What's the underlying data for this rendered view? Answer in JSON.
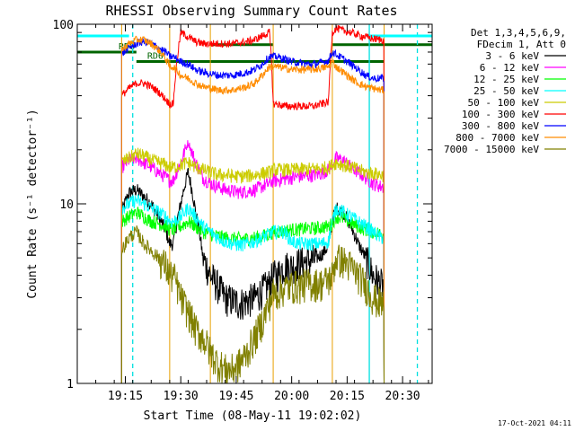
{
  "chart_data": {
    "type": "line",
    "title": "RHESSI Observing Summary Count Rates",
    "xlabel": "Start Time (08-May-11 19:02:02)",
    "ylabel": "Count Rate (s⁻¹ detector⁻¹)",
    "y_scale": "log",
    "ylim": [
      1,
      100
    ],
    "xlim": [
      "19:02",
      "20:38"
    ],
    "x_ticks": [
      "19:15",
      "19:30",
      "19:45",
      "20:00",
      "20:15",
      "20:30"
    ],
    "y_ticks": [
      "1",
      "10",
      "100"
    ],
    "legend_header": [
      "Det 1,3,4,5,6,9,",
      "FDecim 1, Att 0"
    ],
    "legend_position": "right",
    "timestamp": "17-Oct-2021 04:11",
    "gaps": [
      [
        "19:27",
        "19:38"
      ],
      [
        "19:55",
        "20:11"
      ]
    ],
    "data_window": [
      "19:14",
      "20:25"
    ],
    "night_start_markers": [
      "19:14",
      "19:38",
      "20:11"
    ],
    "night_end_markers": [
      "19:27",
      "19:55",
      "20:25"
    ],
    "saa_markers": [
      "19:17",
      "20:21",
      "20:34"
    ],
    "flag_bars": [
      {
        "label": "RD6",
        "x": [
          "19:02",
          "19:18"
        ],
        "y": 70
      },
      {
        "label": "RD6",
        "x": [
          "19:18",
          "20:25"
        ],
        "y": 62
      }
    ],
    "series": [
      {
        "name": "3 - 6 keV",
        "color": "#000000",
        "x": [
          "19:14",
          "19:16",
          "19:18",
          "19:20",
          "19:22",
          "19:24",
          "19:26",
          "19:27",
          "19:28",
          "19:30",
          "19:32",
          "19:34",
          "19:36",
          "19:38",
          "19:40",
          "19:42",
          "19:44",
          "19:46",
          "19:48",
          "19:50",
          "19:52",
          "19:54",
          "19:55",
          "19:56",
          "19:58",
          "20:00",
          "20:02",
          "20:04",
          "20:06",
          "20:08",
          "20:10",
          "20:11",
          "20:12",
          "20:14",
          "20:16",
          "20:18",
          "20:20",
          "20:22",
          "20:24",
          "20:25"
        ],
        "y": [
          9.0,
          11.5,
          12.0,
          11.0,
          10.0,
          8.5,
          7.0,
          6.0,
          6.0,
          10.0,
          15.0,
          9.0,
          5.0,
          4.0,
          3.5,
          3.0,
          2.9,
          2.8,
          2.9,
          3.0,
          3.3,
          3.6,
          4.0,
          4.0,
          4.5,
          4.5,
          4.7,
          4.8,
          4.9,
          5.2,
          5.8,
          8.0,
          9.5,
          9.0,
          7.5,
          6.0,
          5.0,
          4.0,
          3.6,
          3.5
        ]
      },
      {
        "name": "6 - 12 keV",
        "color": "#ff00ff",
        "x": [
          "19:14",
          "19:16",
          "19:18",
          "19:20",
          "19:22",
          "19:24",
          "19:26",
          "19:27",
          "19:28",
          "19:30",
          "19:32",
          "19:34",
          "19:36",
          "19:38",
          "19:40",
          "19:42",
          "19:44",
          "19:46",
          "19:48",
          "19:50",
          "19:52",
          "19:54",
          "19:55",
          "19:56",
          "19:58",
          "20:00",
          "20:02",
          "20:04",
          "20:06",
          "20:08",
          "20:10",
          "20:11",
          "20:12",
          "20:14",
          "20:16",
          "20:18",
          "20:20",
          "20:22",
          "20:24",
          "20:25"
        ],
        "y": [
          16.0,
          17.5,
          18.0,
          17.0,
          16.0,
          15.0,
          14.0,
          13.5,
          13.5,
          17.0,
          22.0,
          17.0,
          14.0,
          13.0,
          12.5,
          12.0,
          11.8,
          11.6,
          11.8,
          12.0,
          12.5,
          13.0,
          13.5,
          13.5,
          13.8,
          14.0,
          14.2,
          14.3,
          14.5,
          14.8,
          15.5,
          16.5,
          18.0,
          17.5,
          16.0,
          15.0,
          14.0,
          13.0,
          12.5,
          12.5
        ]
      },
      {
        "name": "12 - 25 keV",
        "color": "#00ff00",
        "x": [
          "19:14",
          "19:16",
          "19:18",
          "19:20",
          "19:22",
          "19:24",
          "19:26",
          "19:27",
          "19:28",
          "19:30",
          "19:32",
          "19:34",
          "19:36",
          "19:38",
          "19:40",
          "19:42",
          "19:44",
          "19:46",
          "19:48",
          "19:50",
          "19:52",
          "19:54",
          "19:55",
          "19:56",
          "19:58",
          "20:00",
          "20:02",
          "20:04",
          "20:06",
          "20:08",
          "20:10",
          "20:11",
          "20:12",
          "20:14",
          "20:16",
          "20:18",
          "20:20",
          "20:22",
          "20:24",
          "20:25"
        ],
        "y": [
          8.0,
          8.5,
          9.0,
          8.5,
          8.0,
          7.8,
          7.5,
          7.2,
          7.2,
          7.5,
          8.0,
          7.5,
          7.0,
          6.8,
          6.6,
          6.5,
          6.4,
          6.4,
          6.4,
          6.5,
          6.6,
          6.8,
          7.0,
          7.0,
          7.1,
          7.2,
          7.2,
          7.3,
          7.3,
          7.4,
          7.5,
          7.8,
          8.5,
          8.3,
          7.8,
          7.5,
          7.2,
          7.0,
          6.8,
          6.8
        ]
      },
      {
        "name": "25 - 50 keV",
        "color": "#00ffff",
        "x": [
          "19:14",
          "19:16",
          "19:18",
          "19:20",
          "19:22",
          "19:24",
          "19:26",
          "19:27",
          "19:28",
          "19:30",
          "19:32",
          "19:34",
          "19:36",
          "19:38",
          "19:40",
          "19:42",
          "19:44",
          "19:46",
          "19:48",
          "19:50",
          "19:52",
          "19:54",
          "19:55",
          "19:56",
          "19:58",
          "20:00",
          "20:02",
          "20:04",
          "20:06",
          "20:08",
          "20:10",
          "20:11",
          "20:12",
          "20:14",
          "20:16",
          "20:18",
          "20:20",
          "20:22",
          "20:24",
          "20:25"
        ],
        "y": [
          9.5,
          10.0,
          10.5,
          10.0,
          9.5,
          9.0,
          8.5,
          8.0,
          8.0,
          8.5,
          9.5,
          8.5,
          7.5,
          7.0,
          6.5,
          6.2,
          6.0,
          5.9,
          6.0,
          6.2,
          6.5,
          6.8,
          7.0,
          7.0,
          7.0,
          6.2,
          6.0,
          6.0,
          6.0,
          6.0,
          6.2,
          8.0,
          9.5,
          9.0,
          8.5,
          8.0,
          7.5,
          7.0,
          6.5,
          6.5
        ]
      },
      {
        "name": "50 - 100 keV",
        "color": "#cccc00",
        "x": [
          "19:14",
          "19:16",
          "19:18",
          "19:20",
          "19:22",
          "19:24",
          "19:26",
          "19:27",
          "19:28",
          "19:30",
          "19:32",
          "19:34",
          "19:36",
          "19:38",
          "19:40",
          "19:42",
          "19:44",
          "19:46",
          "19:48",
          "19:50",
          "19:52",
          "19:54",
          "19:55",
          "19:56",
          "19:58",
          "20:00",
          "20:02",
          "20:04",
          "20:06",
          "20:08",
          "20:10",
          "20:11",
          "20:12",
          "20:14",
          "20:16",
          "20:18",
          "20:20",
          "20:22",
          "20:24",
          "20:25"
        ],
        "y": [
          17.0,
          18.0,
          19.0,
          18.5,
          17.5,
          17.0,
          16.5,
          16.0,
          16.0,
          16.5,
          17.0,
          16.0,
          15.5,
          15.0,
          14.5,
          14.5,
          14.3,
          14.2,
          14.3,
          14.5,
          14.8,
          15.0,
          15.5,
          15.5,
          15.5,
          15.5,
          15.6,
          15.6,
          15.7,
          15.8,
          16.0,
          16.5,
          17.0,
          16.5,
          16.0,
          15.5,
          15.0,
          14.8,
          14.5,
          14.5
        ]
      },
      {
        "name": "100 - 300 keV",
        "color": "#ff0000",
        "x": [
          "19:14",
          "19:16",
          "19:18",
          "19:20",
          "19:22",
          "19:24",
          "19:26",
          "19:27",
          "19:28",
          "19:30",
          "19:32",
          "19:34",
          "19:36",
          "19:38",
          "19:40",
          "19:42",
          "19:44",
          "19:46",
          "19:48",
          "19:50",
          "19:52",
          "19:54",
          "19:55",
          "19:56",
          "19:58",
          "20:00",
          "20:02",
          "20:04",
          "20:06",
          "20:08",
          "20:10",
          "20:11",
          "20:12",
          "20:14",
          "20:16",
          "20:18",
          "20:20",
          "20:22",
          "20:24",
          "20:25"
        ],
        "y": [
          40.0,
          44.0,
          47.0,
          47.0,
          45.0,
          42.0,
          38.0,
          36.0,
          36.0,
          90.0,
          85.0,
          80.0,
          78.0,
          78.0,
          78.0,
          78.0,
          78.0,
          79.0,
          80.0,
          82.0,
          86.0,
          90.0,
          36.0,
          36.0,
          35.0,
          35.0,
          35.0,
          35.0,
          35.0,
          36.0,
          37.0,
          90.0,
          95.0,
          92.0,
          90.0,
          87.0,
          85.0,
          83.0,
          82.0,
          82.0
        ]
      },
      {
        "name": "300 - 800 keV",
        "color": "#0000ff",
        "x": [
          "19:14",
          "19:16",
          "19:18",
          "19:20",
          "19:22",
          "19:24",
          "19:26",
          "19:27",
          "19:28",
          "19:30",
          "19:32",
          "19:34",
          "19:36",
          "19:38",
          "19:40",
          "19:42",
          "19:44",
          "19:46",
          "19:48",
          "19:50",
          "19:52",
          "19:54",
          "19:55",
          "19:56",
          "19:58",
          "20:00",
          "20:02",
          "20:04",
          "20:06",
          "20:08",
          "20:10",
          "20:11",
          "20:12",
          "20:14",
          "20:16",
          "20:18",
          "20:20",
          "20:22",
          "20:24",
          "20:25"
        ],
        "y": [
          68.0,
          74.0,
          78.0,
          80.0,
          78.0,
          74.0,
          70.0,
          66.0,
          66.0,
          62.0,
          60.0,
          56.0,
          54.0,
          53.0,
          52.0,
          52.0,
          52.0,
          53.0,
          54.0,
          56.0,
          60.0,
          66.0,
          66.0,
          66.0,
          64.0,
          62.0,
          61.0,
          60.0,
          60.0,
          61.0,
          63.0,
          70.0,
          68.0,
          64.0,
          60.0,
          56.0,
          52.0,
          50.0,
          50.0,
          50.0
        ]
      },
      {
        "name": "800 - 7000 keV",
        "color": "#ff8c00",
        "x": [
          "19:14",
          "19:16",
          "19:18",
          "19:20",
          "19:22",
          "19:24",
          "19:26",
          "19:27",
          "19:28",
          "19:30",
          "19:32",
          "19:34",
          "19:36",
          "19:38",
          "19:40",
          "19:42",
          "19:44",
          "19:46",
          "19:48",
          "19:50",
          "19:52",
          "19:54",
          "19:55",
          "19:56",
          "19:58",
          "20:00",
          "20:02",
          "20:04",
          "20:06",
          "20:08",
          "20:10",
          "20:11",
          "20:12",
          "20:14",
          "20:16",
          "20:18",
          "20:20",
          "20:22",
          "20:24",
          "20:25"
        ],
        "y": [
          72.0,
          78.0,
          82.0,
          82.0,
          78.0,
          72.0,
          64.0,
          58.0,
          58.0,
          52.0,
          50.0,
          47.0,
          45.0,
          44.0,
          43.0,
          43.0,
          43.0,
          44.0,
          45.0,
          47.0,
          52.0,
          58.0,
          58.0,
          58.0,
          57.0,
          56.0,
          56.0,
          56.0,
          56.0,
          57.0,
          58.0,
          62.0,
          58.0,
          54.0,
          50.0,
          47.0,
          45.0,
          44.0,
          43.0,
          43.0
        ]
      },
      {
        "name": "7000 - 15000 keV",
        "color": "#808000",
        "x": [
          "19:14",
          "19:16",
          "19:18",
          "19:20",
          "19:22",
          "19:24",
          "19:26",
          "19:27",
          "19:28",
          "19:30",
          "19:32",
          "19:34",
          "19:36",
          "19:38",
          "19:40",
          "19:42",
          "19:44",
          "19:46",
          "19:48",
          "19:50",
          "19:52",
          "19:54",
          "19:55",
          "19:56",
          "19:58",
          "20:00",
          "20:02",
          "20:04",
          "20:06",
          "20:08",
          "20:10",
          "20:11",
          "20:12",
          "20:14",
          "20:16",
          "20:18",
          "20:20",
          "20:22",
          "20:24",
          "20:25"
        ],
        "y": [
          5.5,
          6.5,
          7.0,
          6.0,
          5.5,
          5.0,
          4.5,
          4.0,
          4.0,
          3.0,
          2.5,
          2.0,
          1.8,
          1.5,
          1.3,
          1.2,
          1.2,
          1.3,
          1.5,
          1.8,
          2.2,
          2.8,
          3.2,
          3.2,
          3.4,
          3.5,
          3.5,
          3.6,
          3.6,
          3.6,
          3.8,
          4.0,
          5.0,
          4.8,
          4.5,
          4.0,
          3.5,
          3.0,
          2.8,
          2.8
        ]
      }
    ]
  }
}
